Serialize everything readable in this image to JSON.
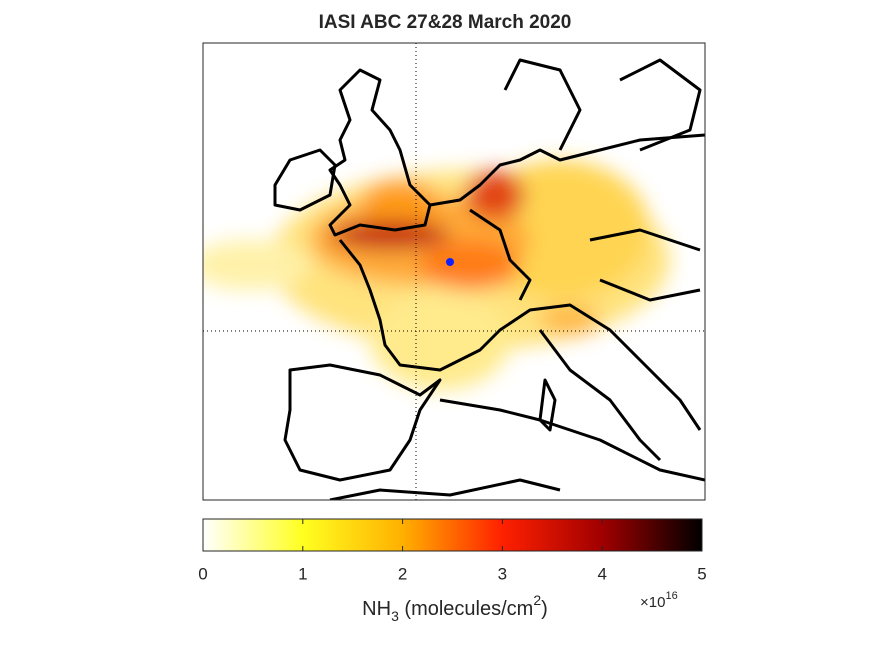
{
  "title": "IASI ABC 27&28 March 2020",
  "colorbar": {
    "lim": [
      0,
      5
    ],
    "ticks": [
      0,
      1,
      2,
      3,
      4,
      5
    ],
    "colormap": [
      "#ffffff",
      "#ffff20",
      "#ffb000",
      "#ff2000",
      "#a00000",
      "#000000"
    ],
    "label": {
      "base": "NH",
      "sub": "3",
      "mid": " (molecules/cm",
      "sup": "2",
      "end": ")"
    },
    "exponent": {
      "base": "×10",
      "power": "16"
    }
  }
}
